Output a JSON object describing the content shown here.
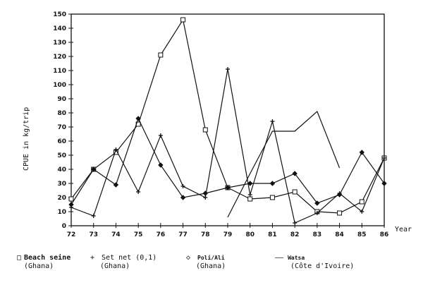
{
  "chart_data": {
    "type": "line",
    "title": "",
    "xlabel": "Year",
    "ylabel": "CPUE in kg/trip",
    "ylim": [
      0,
      150
    ],
    "yticks": [
      0,
      10,
      20,
      30,
      40,
      50,
      60,
      70,
      80,
      90,
      100,
      110,
      120,
      130,
      140,
      150
    ],
    "x": [
      "72",
      "73",
      "74",
      "75",
      "76",
      "77",
      "78",
      "79",
      "80",
      "81",
      "82",
      "83",
      "84",
      "85",
      "86"
    ],
    "grid": false,
    "legend_position": "bottom",
    "series": [
      {
        "name": "Beach seine (Ghana)",
        "marker": "square",
        "values": [
          19,
          40,
          52,
          72,
          121,
          146,
          68,
          27,
          19,
          20,
          24,
          10,
          9,
          17,
          48
        ]
      },
      {
        "name": "Set net (0,1) (Ghana)",
        "marker": "plus",
        "values": [
          13,
          7,
          54,
          24,
          64,
          28,
          20,
          111,
          22,
          74,
          2,
          9,
          23,
          10,
          48
        ]
      },
      {
        "name": "Poli/Ali (Ghana)",
        "marker": "diamond",
        "values": [
          15,
          40,
          29,
          76,
          43,
          20,
          23,
          27,
          30,
          30,
          37,
          16,
          22,
          52,
          30
        ]
      },
      {
        "name": "Watsa (Côte d'Ivoire)",
        "marker": "none",
        "values": [
          null,
          null,
          null,
          null,
          null,
          null,
          null,
          6,
          37,
          67,
          67,
          81,
          41,
          null,
          null
        ]
      }
    ]
  },
  "axes": {
    "ylabel": "CPUE in kg/trip",
    "xlabel": "Year"
  },
  "legend": [
    {
      "symbol": "□",
      "line1": "Beach seine",
      "line2": "(Ghana)"
    },
    {
      "symbol": "+",
      "line1": "Set net (0,1)",
      "line2": "(Ghana)"
    },
    {
      "symbol": "◇",
      "line1": "Poli/Ali",
      "line2": "(Ghana)"
    },
    {
      "symbol": "——",
      "line1": "Watsa",
      "line2": "(Côte d'Ivoire)"
    }
  ]
}
